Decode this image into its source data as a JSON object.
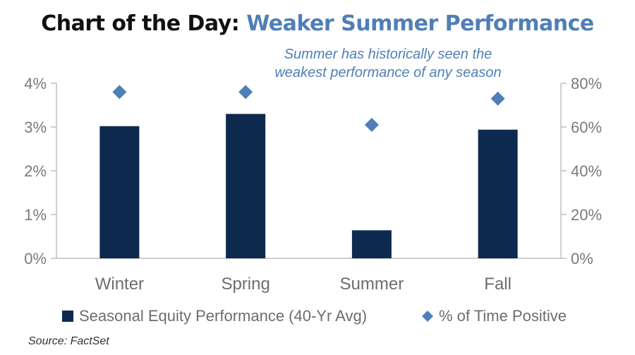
{
  "title": {
    "prefix": "Chart of the Day:",
    "highlight": "Weaker Summer Performance",
    "highlight_color": "#4f7fb8"
  },
  "source": "Source: FactSet",
  "chart_data": {
    "type": "bar",
    "categories": [
      "Winter",
      "Spring",
      "Summer",
      "Fall"
    ],
    "series": [
      {
        "name": "Seasonal Equity Performance (40-Yr Avg)",
        "kind": "bar",
        "axis": "left",
        "color": "#0d2a4e",
        "values": [
          3.02,
          3.3,
          0.64,
          2.94
        ]
      },
      {
        "name": "% of Time Positive",
        "kind": "marker",
        "marker": "diamond",
        "axis": "right",
        "color": "#4f7fb8",
        "values": [
          76,
          76,
          61,
          73
        ]
      }
    ],
    "y_left": {
      "lim": [
        0,
        4
      ],
      "ticks": [
        0,
        1,
        2,
        3,
        4
      ],
      "tick_labels": [
        "0%",
        "1%",
        "2%",
        "3%",
        "4%"
      ]
    },
    "y_right": {
      "lim": [
        0,
        80
      ],
      "ticks": [
        0,
        20,
        40,
        60,
        80
      ],
      "tick_labels": [
        "0%",
        "20%",
        "40%",
        "60%",
        "80%"
      ]
    },
    "annotation": {
      "lines": [
        "Summer has historically seen the",
        "weakest performance of any season"
      ],
      "color": "#4f7fb8"
    },
    "grid": false,
    "legend_position": "bottom"
  }
}
